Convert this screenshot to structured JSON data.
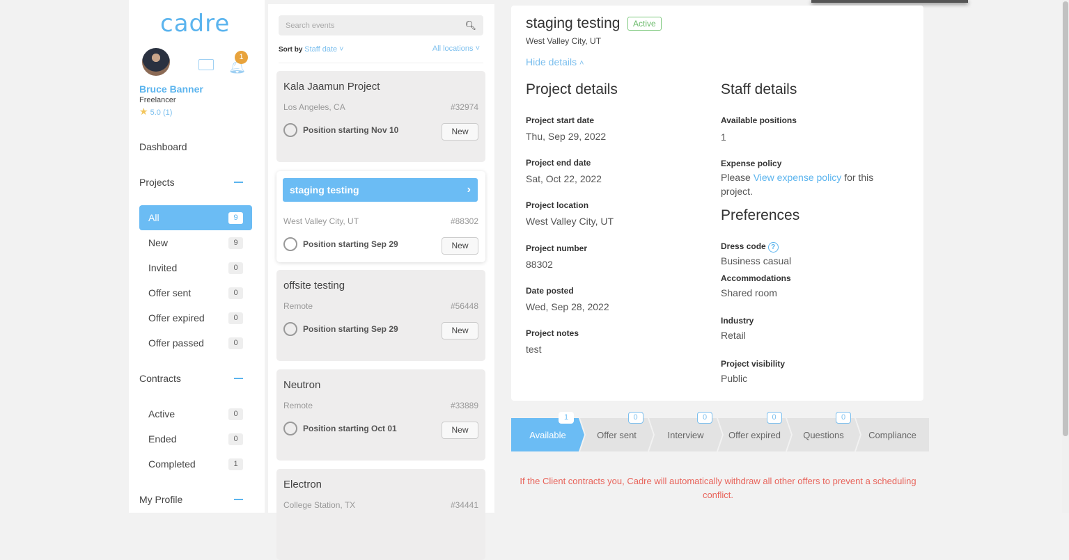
{
  "sidebar": {
    "logo": "cadre",
    "user": {
      "name": "Bruce Banner",
      "role": "Freelancer",
      "rating": "5.0 (1)"
    },
    "notifications": "1",
    "dashboard": "Dashboard",
    "projects_heading": "Projects",
    "projects": [
      {
        "label": "All",
        "count": "9"
      },
      {
        "label": "New",
        "count": "9"
      },
      {
        "label": "Invited",
        "count": "0"
      },
      {
        "label": "Offer sent",
        "count": "0"
      },
      {
        "label": "Offer expired",
        "count": "0"
      },
      {
        "label": "Offer passed",
        "count": "0"
      }
    ],
    "contracts_heading": "Contracts",
    "contracts": [
      {
        "label": "Active",
        "count": "0"
      },
      {
        "label": "Ended",
        "count": "0"
      },
      {
        "label": "Completed",
        "count": "1"
      }
    ],
    "profile_heading": "My Profile"
  },
  "list": {
    "search_placeholder": "Search events",
    "sort_label": "Sort by",
    "sort_value": "Staff date",
    "location_filter": "All locations",
    "cards": [
      {
        "title": "Kala Jaamun Project",
        "location": "Los Angeles, CA",
        "number": "#32974",
        "position": "Position starting Nov 10",
        "status": "New"
      },
      {
        "title": "staging testing",
        "location": "West Valley City, UT",
        "number": "#88302",
        "position": "Position starting Sep 29",
        "status": "New"
      },
      {
        "title": "offsite testing",
        "location": "Remote",
        "number": "#56448",
        "position": "Position starting Sep 29",
        "status": "New"
      },
      {
        "title": "Neutron",
        "location": "Remote",
        "number": "#33889",
        "position": "Position starting Oct 01",
        "status": "New"
      },
      {
        "title": "Electron",
        "location": "College Station, TX",
        "number": "#34441"
      }
    ]
  },
  "detail": {
    "title": "staging testing",
    "status": "Active",
    "location": "West Valley City, UT",
    "hide_details": "Hide details",
    "project_heading": "Project details",
    "project": [
      {
        "label": "Project start date",
        "value": "Thu, Sep 29, 2022"
      },
      {
        "label": "Project end date",
        "value": "Sat, Oct 22, 2022"
      },
      {
        "label": "Project location",
        "value": "West Valley City, UT"
      },
      {
        "label": "Project number",
        "value": "88302"
      },
      {
        "label": "Date posted",
        "value": "Wed, Sep 28, 2022"
      },
      {
        "label": "Project notes",
        "value": "test"
      }
    ],
    "staff_heading": "Staff details",
    "available_positions_label": "Available positions",
    "available_positions": "1",
    "expense_label": "Expense policy",
    "expense_pre": "Please ",
    "expense_link": "View expense policy",
    "expense_post": " for this project.",
    "preferences_heading": "Preferences",
    "preferences": [
      {
        "label": "Dress code",
        "value": "Business casual"
      },
      {
        "label": "Accommodations",
        "value": "Shared room"
      },
      {
        "label": "Industry",
        "value": "Retail"
      },
      {
        "label": "Project visibility",
        "value": "Public"
      }
    ]
  },
  "steps": [
    {
      "label": "Available",
      "count": "1"
    },
    {
      "label": "Offer sent",
      "count": "0"
    },
    {
      "label": "Interview",
      "count": "0"
    },
    {
      "label": "Offer expired",
      "count": "0"
    },
    {
      "label": "Questions",
      "count": "0"
    },
    {
      "label": "Compliance"
    }
  ],
  "warning": "If the Client contracts you, Cadre will automatically withdraw all other offers to prevent a scheduling conflict.",
  "colors": {
    "accent": "#6bbcf4",
    "warning": "#e8635a",
    "active_badge": "#6aba6a",
    "notification": "#e8a33c"
  }
}
